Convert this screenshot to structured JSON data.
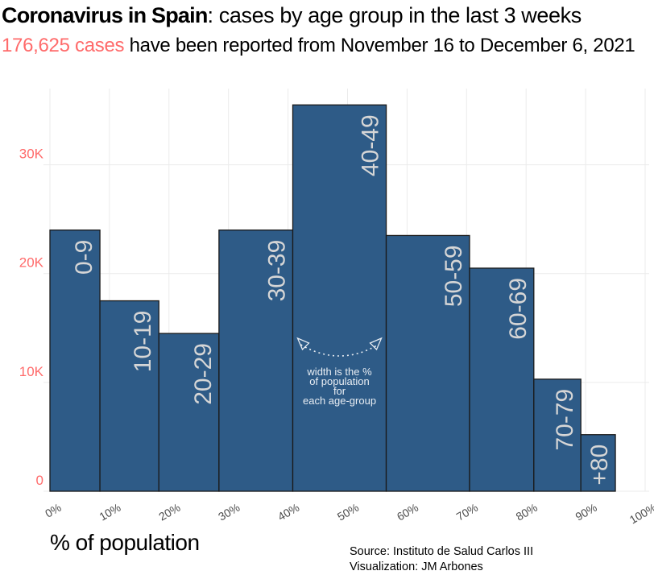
{
  "header": {
    "title_bold": "Coronavirus in Spain",
    "title_rest": ": cases by age group in the last 3 weeks",
    "subtitle_count": "176,625",
    "subtitle_cases": " cases",
    "subtitle_rest": " have been reported from November 16 to December 6, 2021"
  },
  "footer": {
    "source": "Source: Instituto de Salud Carlos III",
    "visualization": "Visualization:  JM Arbones"
  },
  "colors": {
    "bar_fill": "#2e5b87",
    "bar_stroke": "#1a1a1a",
    "accent": "#ff6b6b",
    "grid": "#ebebeb",
    "bar_label": "#d6d6d6",
    "annotation": "#e8edf3"
  },
  "chart_data": {
    "type": "bar",
    "variable_width": true,
    "xlabel": "% of population",
    "ylabel": "",
    "xlim": [
      0,
      100
    ],
    "ylim": [
      0,
      37000
    ],
    "x_ticks": [
      "0%",
      "10%",
      "20%",
      "30%",
      "40%",
      "50%",
      "60%",
      "70%",
      "80%",
      "90%",
      "100%"
    ],
    "x_tick_values": [
      0,
      10,
      20,
      30,
      40,
      50,
      60,
      70,
      80,
      90,
      100
    ],
    "y_ticks": [
      "0",
      "10K",
      "20K",
      "30K"
    ],
    "y_tick_values": [
      0,
      10000,
      20000,
      30000
    ],
    "grid": true,
    "categories": [
      "0-9",
      "10-19",
      "20-29",
      "30-39",
      "40-49",
      "50-59",
      "60-69",
      "70-79",
      "+80"
    ],
    "population_percent": [
      8.4,
      9.9,
      10.1,
      12.4,
      15.7,
      14.0,
      10.8,
      7.9,
      5.8
    ],
    "values": [
      24000,
      17500,
      14500,
      24000,
      35500,
      23500,
      20500,
      10300,
      5200
    ],
    "annotation": [
      "width is the %",
      "of population",
      "for",
      "each age-group"
    ]
  }
}
